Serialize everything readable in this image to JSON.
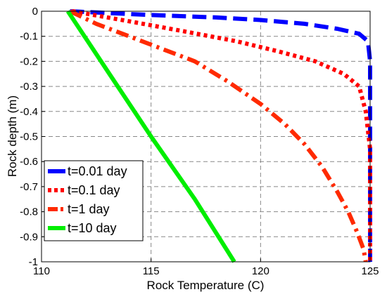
{
  "chart_data": {
    "type": "line",
    "xlabel": "Rock Temperature (C)",
    "ylabel": "Rock depth (m)",
    "xlim": [
      110,
      125
    ],
    "ylim": [
      -1,
      0
    ],
    "x_ticks": [
      "110",
      "115",
      "120",
      "125"
    ],
    "y_ticks": [
      "0",
      "-0.1",
      "-0.2",
      "-0.3",
      "-0.4",
      "-0.5",
      "-0.6",
      "-0.7",
      "-0.8",
      "-0.9",
      "-1"
    ],
    "grid": true,
    "legend_position": "bottom-left",
    "series": [
      {
        "name": "t=0.01 day",
        "color": "#0000ff",
        "dash": "dashed",
        "points": [
          [
            111.3,
            0
          ],
          [
            115,
            -0.015
          ],
          [
            118,
            -0.025
          ],
          [
            120,
            -0.035
          ],
          [
            122,
            -0.05
          ],
          [
            123.5,
            -0.07
          ],
          [
            124.5,
            -0.09
          ],
          [
            124.9,
            -0.12
          ],
          [
            125,
            -0.2
          ],
          [
            125,
            -1
          ]
        ]
      },
      {
        "name": "t=0.1 day",
        "color": "#ff0000",
        "dash": "dotted",
        "points": [
          [
            111.4,
            0
          ],
          [
            114,
            -0.04
          ],
          [
            116.5,
            -0.08
          ],
          [
            118.9,
            -0.12
          ],
          [
            120.8,
            -0.16
          ],
          [
            122.5,
            -0.2
          ],
          [
            123.8,
            -0.25
          ],
          [
            124.5,
            -0.3
          ],
          [
            124.8,
            -0.4
          ],
          [
            125,
            -0.55
          ],
          [
            125,
            -1
          ]
        ]
      },
      {
        "name": "t=1 day",
        "color": "#ff2a00",
        "dash": "dashdot",
        "points": [
          [
            111.3,
            0
          ],
          [
            112.5,
            -0.05
          ],
          [
            114,
            -0.1
          ],
          [
            115.5,
            -0.15
          ],
          [
            117,
            -0.2
          ],
          [
            118.5,
            -0.28
          ],
          [
            120,
            -0.37
          ],
          [
            121.1,
            -0.45
          ],
          [
            122,
            -0.53
          ],
          [
            122.8,
            -0.62
          ],
          [
            123.5,
            -0.72
          ],
          [
            124,
            -0.8
          ],
          [
            124.4,
            -0.88
          ],
          [
            124.7,
            -0.95
          ],
          [
            124.8,
            -1
          ]
        ]
      },
      {
        "name": "t=10 day",
        "color": "#00ee00",
        "dash": "solid",
        "points": [
          [
            111.2,
            0
          ],
          [
            113.1,
            -0.25
          ],
          [
            115,
            -0.5
          ],
          [
            117,
            -0.75
          ],
          [
            118.8,
            -1
          ]
        ]
      }
    ]
  }
}
